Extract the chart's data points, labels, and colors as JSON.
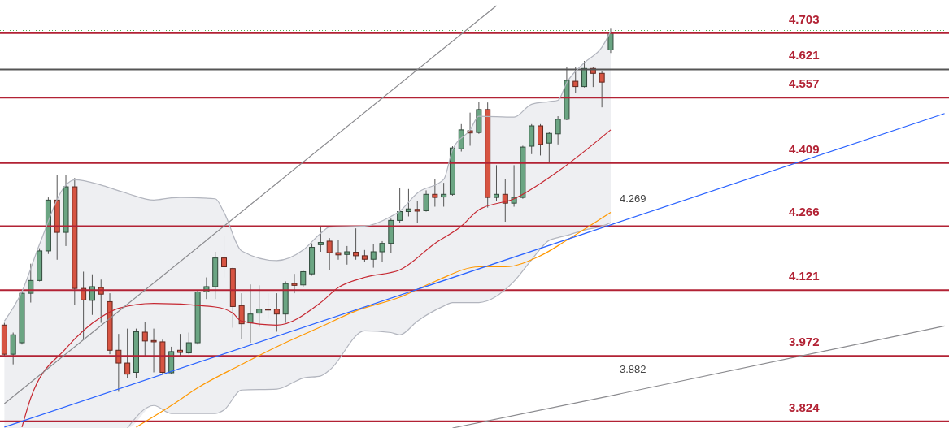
{
  "chart_data": {
    "type": "candlestick",
    "categories": [
      null,
      null,
      null,
      null,
      null,
      null,
      null,
      null,
      null,
      null,
      null,
      null,
      null,
      null,
      null,
      null,
      null,
      null,
      null,
      null,
      null,
      null,
      null,
      null,
      null,
      null,
      null,
      null,
      null,
      null,
      null,
      null,
      null,
      null,
      null,
      null,
      null,
      null,
      null,
      null,
      null,
      null,
      null,
      null,
      null,
      null,
      null,
      null,
      null,
      null,
      null,
      null,
      null,
      null,
      null,
      null,
      null,
      null,
      null,
      null,
      null,
      null,
      null,
      null,
      null,
      null,
      null,
      null,
      null,
      null,
      null,
      null,
      null,
      null,
      null,
      null,
      null,
      null,
      null,
      null,
      null,
      null,
      null,
      null,
      null,
      null,
      null,
      null,
      null,
      null,
      null,
      null,
      null,
      null,
      null,
      null,
      null,
      null,
      null,
      null,
      null,
      null,
      null,
      null,
      null,
      null,
      null,
      null
    ],
    "ohlc": [
      [
        4.042,
        4.047,
        3.971,
        3.976
      ],
      [
        3.976,
        4.025,
        3.953,
        4.02
      ],
      [
        4.002,
        4.118,
        3.998,
        4.114
      ],
      [
        4.114,
        4.181,
        4.093,
        4.143
      ],
      [
        4.143,
        4.216,
        4.141,
        4.21
      ],
      [
        4.21,
        4.331,
        4.203,
        4.325
      ],
      [
        4.325,
        4.381,
        4.19,
        4.252
      ],
      [
        4.252,
        4.381,
        4.221,
        4.355
      ],
      [
        4.355,
        4.375,
        4.087,
        4.125
      ],
      [
        4.125,
        4.163,
        4.011,
        4.099
      ],
      [
        4.098,
        4.157,
        4.065,
        4.129
      ],
      [
        4.127,
        4.145,
        4.047,
        4.112
      ],
      [
        4.095,
        4.114,
        3.976,
        3.985
      ],
      [
        3.985,
        4.022,
        3.891,
        3.956
      ],
      [
        3.956,
        4.034,
        3.922,
        3.931
      ],
      [
        3.935,
        4.034,
        3.922,
        4.027
      ],
      [
        4.026,
        4.049,
        3.971,
        4.006
      ],
      [
        4.007,
        4.034,
        3.935,
        4.004
      ],
      [
        4.004,
        4.009,
        3.931,
        3.935
      ],
      [
        3.934,
        3.993,
        3.931,
        3.982
      ],
      [
        3.985,
        4.022,
        3.971,
        3.98
      ],
      [
        3.979,
        4.025,
        3.976,
        4.002
      ],
      [
        4.002,
        4.12,
        3.998,
        4.117
      ],
      [
        4.117,
        4.15,
        4.101,
        4.129
      ],
      [
        4.129,
        4.208,
        4.101,
        4.194
      ],
      [
        4.194,
        4.245,
        4.15,
        4.174
      ],
      [
        4.17,
        4.172,
        4.036,
        4.084
      ],
      [
        4.086,
        4.114,
        4.011,
        4.045
      ],
      [
        4.047,
        4.134,
        4.002,
        4.067
      ],
      [
        4.069,
        4.132,
        4.038,
        4.078
      ],
      [
        4.078,
        4.114,
        4.056,
        4.076
      ],
      [
        4.078,
        4.114,
        4.027,
        4.067
      ],
      [
        4.067,
        4.141,
        4.047,
        4.136
      ],
      [
        4.136,
        4.158,
        4.114,
        4.132
      ],
      [
        4.133,
        4.165,
        4.129,
        4.163
      ],
      [
        4.158,
        4.227,
        4.154,
        4.218
      ],
      [
        4.224,
        4.266,
        4.208,
        4.229
      ],
      [
        4.232,
        4.239,
        4.166,
        4.206
      ],
      [
        4.206,
        4.234,
        4.19,
        4.201
      ],
      [
        4.202,
        4.221,
        4.179,
        4.208
      ],
      [
        4.207,
        4.261,
        4.19,
        4.199
      ],
      [
        4.199,
        4.212,
        4.185,
        4.191
      ],
      [
        4.191,
        4.225,
        4.172,
        4.208
      ],
      [
        4.208,
        4.232,
        4.185,
        4.227
      ],
      [
        4.227,
        4.283,
        4.205,
        4.279
      ],
      [
        4.279,
        4.352,
        4.274,
        4.299
      ],
      [
        4.299,
        4.35,
        4.288,
        4.305
      ],
      [
        4.304,
        4.323,
        4.274,
        4.3
      ],
      [
        4.301,
        4.347,
        4.299,
        4.338
      ],
      [
        4.338,
        4.372,
        4.31,
        4.331
      ],
      [
        4.332,
        4.364,
        4.31,
        4.338
      ],
      [
        4.338,
        4.447,
        4.335,
        4.443
      ],
      [
        4.441,
        4.497,
        4.435,
        4.484
      ],
      [
        4.482,
        4.523,
        4.448,
        4.477
      ],
      [
        4.478,
        4.548,
        4.475,
        4.53
      ],
      [
        4.53,
        4.546,
        4.308,
        4.331
      ],
      [
        4.331,
        4.404,
        4.323,
        4.338
      ],
      [
        4.338,
        4.372,
        4.276,
        4.318
      ],
      [
        4.318,
        4.404,
        4.31,
        4.331
      ],
      [
        4.331,
        4.448,
        4.328,
        4.445
      ],
      [
        4.447,
        4.497,
        4.429,
        4.493
      ],
      [
        4.493,
        4.497,
        4.426,
        4.451
      ],
      [
        4.454,
        4.48,
        4.411,
        4.476
      ],
      [
        4.475,
        4.515,
        4.451,
        4.508
      ],
      [
        4.508,
        4.627,
        4.506,
        4.596
      ],
      [
        4.594,
        4.627,
        4.567,
        4.582
      ],
      [
        4.582,
        4.64,
        4.58,
        4.623
      ],
      [
        4.623,
        4.627,
        4.581,
        4.612
      ],
      [
        4.612,
        4.618,
        4.535,
        4.592
      ],
      [
        4.665,
        4.713,
        4.658,
        4.705
      ],
      null,
      null,
      null,
      null,
      null,
      null,
      null,
      null,
      null,
      null,
      null,
      null,
      null,
      null,
      null,
      null,
      null,
      null,
      null,
      null,
      null,
      null,
      null,
      null,
      null,
      null,
      null,
      null,
      null,
      null,
      null,
      null,
      null,
      null,
      null,
      null,
      null,
      null
    ],
    "colors": [
      "#d75442",
      "#6ba583",
      "#6ba583",
      "#6ba583",
      "#6ba583",
      "#6ba583",
      "#d75442",
      "#6ba583",
      "#d75442",
      "#d75442",
      "#6ba583",
      "#d75442",
      "#d75442",
      "#d75442",
      "#d75442",
      "#6ba583",
      "#d75442",
      "#d75442",
      "#d75442",
      "#6ba583",
      "#d75442",
      "#6ba583",
      "#6ba583",
      "#6ba583",
      "#6ba583",
      "#d75442",
      "#d75442",
      "#d75442",
      "#6ba583",
      "#6ba583",
      "#d75442",
      "#d75442",
      "#6ba583",
      "#d75442",
      "#6ba583",
      "#6ba583",
      "#6ba583",
      "#d75442",
      "#d75442",
      "#6ba583",
      "#d75442",
      "#d75442",
      "#6ba583",
      "#6ba583",
      "#6ba583",
      "#6ba583",
      "#6ba583",
      "#d75442",
      "#6ba583",
      "#d75442",
      "#6ba583",
      "#6ba583",
      "#6ba583",
      "#d75442",
      "#6ba583",
      "#d75442",
      "#6ba583",
      "#d75442",
      "#6ba583",
      "#6ba583",
      "#6ba583",
      "#d75442",
      "#6ba583",
      "#6ba583",
      "#6ba583",
      "#d75442",
      "#6ba583",
      "#d75442",
      "#d75442",
      "#6ba583",
      null,
      null,
      null,
      null,
      null,
      null,
      null,
      null,
      null,
      null,
      null,
      null,
      null,
      null,
      null,
      null,
      null,
      null,
      null,
      null,
      null,
      null,
      null,
      null,
      null,
      null,
      null,
      null,
      null,
      null,
      null,
      null,
      null,
      null,
      null,
      null,
      null,
      null
    ],
    "series": [
      {
        "type": "line",
        "color": "#c62832",
        "values": [
          null,
          null,
          3.811,
          3.877,
          null,
          null,
          null,
          3.989,
          null,
          null,
          null,
          4.06,
          null,
          4.08,
          null,
          null,
          null,
          4.091,
          null,
          null,
          null,
          null,
          null,
          null,
          4.083,
          null,
          4.069,
          4.051,
          null,
          null,
          null,
          4.042,
          null,
          null,
          null,
          null,
          4.093,
          null,
          4.127,
          null,
          null,
          4.15,
          null,
          null,
          null,
          4.167,
          null,
          null,
          null,
          4.227,
          null,
          null,
          4.266,
          null,
          4.303,
          null,
          null,
          null,
          4.328,
          null,
          null,
          null,
          null,
          4.39,
          null,
          null,
          null,
          null,
          null,
          4.484,
          null,
          null,
          null,
          null,
          null,
          null,
          null,
          null,
          null,
          null,
          null,
          null,
          null,
          null,
          null,
          null,
          null,
          null,
          null,
          null,
          null,
          null,
          null,
          null,
          null,
          null,
          null,
          null,
          null,
          null,
          null,
          null,
          null,
          null,
          null,
          null,
          null,
          null
        ],
        "upper": [
          4.051,
          null,
          4.118,
          null,
          4.225,
          null,
          null,
          4.359,
          4.371,
          null,
          null,
          4.359,
          null,
          4.346,
          4.34,
          null,
          null,
          4.325,
          null,
          4.33,
          4.331,
          null,
          null,
          null,
          4.328,
          4.297,
          null,
          4.21,
          null,
          null,
          null,
          4.188,
          null,
          null,
          4.212,
          null,
          4.25,
          4.264,
          null,
          null,
          null,
          4.266,
          null,
          null,
          4.288,
          4.3,
          null,
          4.341,
          null,
          null,
          4.372,
          4.439,
          null,
          4.484,
          4.515,
          null,
          null,
          null,
          4.513,
          null,
          4.542,
          null,
          4.548,
          4.551,
          4.591,
          null,
          4.636,
          null,
          4.671,
          4.707,
          null,
          null,
          null,
          null,
          null,
          null,
          null,
          null,
          null,
          null,
          null,
          null,
          null,
          null,
          null,
          null,
          null,
          null,
          null,
          null,
          null,
          null,
          null,
          null,
          null,
          null,
          null,
          null,
          null,
          null,
          null,
          null,
          null,
          null,
          null,
          null,
          null,
          null
        ],
        "lower": [
          3.809,
          null,
          3.809,
          null,
          3.809,
          null,
          null,
          3.809,
          3.809,
          null,
          null,
          3.809,
          null,
          3.809,
          3.809,
          null,
          null,
          3.86,
          null,
          3.842,
          3.842,
          null,
          null,
          null,
          3.842,
          3.85,
          null,
          3.895,
          null,
          null,
          null,
          3.897,
          null,
          null,
          3.922,
          null,
          3.927,
          3.94,
          null,
          null,
          null,
          4.029,
          null,
          null,
          4.025,
          4.02,
          null,
          4.051,
          null,
          null,
          4.085,
          4.093,
          null,
          4.093,
          4.093,
          null,
          null,
          null,
          4.141,
          null,
          4.19,
          null,
          4.234,
          4.24,
          4.245,
          null,
          4.257,
          null,
          4.266,
          4.274,
          null,
          null,
          null,
          null,
          null,
          null,
          null,
          null,
          null,
          null,
          null,
          null,
          null,
          null,
          null,
          null,
          null,
          null,
          null,
          null,
          null,
          null,
          null,
          null,
          null,
          null,
          null,
          null,
          null,
          null,
          null,
          null,
          null,
          null,
          null,
          null,
          null,
          null
        ]
      },
      {
        "type": "line",
        "color": "#b2b5be",
        "values": [
          4.051,
          null,
          4.118,
          null,
          4.225,
          null,
          null,
          4.359,
          4.371,
          null,
          null,
          4.359,
          null,
          4.346,
          4.34,
          null,
          null,
          4.325,
          null,
          4.33,
          4.331,
          null,
          null,
          null,
          4.328,
          4.297,
          null,
          4.21,
          null,
          null,
          null,
          4.188,
          null,
          null,
          4.212,
          null,
          4.25,
          4.264,
          null,
          null,
          null,
          4.266,
          null,
          null,
          4.288,
          4.3,
          null,
          4.341,
          null,
          null,
          4.372,
          4.439,
          null,
          4.484,
          4.515,
          null,
          null,
          null,
          4.513,
          null,
          4.542,
          null,
          4.548,
          4.551,
          4.591,
          null,
          4.636,
          null,
          4.671,
          4.707,
          null,
          null,
          null,
          null,
          null,
          null,
          null,
          null,
          null,
          null,
          null,
          null,
          null,
          null,
          null,
          null,
          null,
          null,
          null,
          null,
          null,
          null,
          null,
          null,
          null,
          null,
          null,
          null,
          null,
          null,
          null,
          null,
          null,
          null,
          null,
          null,
          null,
          null
        ]
      },
      {
        "type": "line",
        "color": "#b2b5be",
        "values": [
          null,
          null,
          null,
          null,
          null,
          null,
          null,
          null,
          null,
          null,
          null,
          null,
          null,
          null,
          3.809,
          null,
          null,
          3.86,
          null,
          3.842,
          3.842,
          null,
          null,
          null,
          3.842,
          3.85,
          null,
          3.895,
          null,
          null,
          null,
          3.897,
          null,
          null,
          3.922,
          null,
          3.927,
          3.94,
          null,
          null,
          null,
          4.029,
          null,
          null,
          4.025,
          4.02,
          null,
          4.051,
          null,
          null,
          4.085,
          4.093,
          null,
          4.093,
          4.093,
          null,
          null,
          null,
          4.141,
          null,
          4.19,
          null,
          4.234,
          4.24,
          4.245,
          null,
          4.257,
          null,
          4.266,
          4.274,
          null,
          null,
          null,
          null,
          null,
          null,
          null,
          null,
          null,
          null,
          null,
          null,
          null,
          null,
          null,
          null,
          null,
          null,
          null,
          null,
          null,
          null,
          null,
          null,
          null,
          null,
          null,
          null,
          null,
          null,
          null,
          null,
          null,
          null,
          null,
          null,
          null,
          null
        ]
      },
      {
        "type": "line",
        "color": "#ff9800",
        "values": [
          null,
          null,
          null,
          null,
          null,
          null,
          null,
          null,
          null,
          null,
          null,
          null,
          null,
          null,
          null,
          3.811,
          null,
          null,
          null,
          3.86,
          null,
          null,
          3.9,
          null,
          null,
          null,
          null,
          3.953,
          null,
          null,
          null,
          3.993,
          null,
          null,
          null,
          null,
          4.038,
          null,
          null,
          null,
          4.074,
          null,
          null,
          null,
          null,
          4.105,
          null,
          null,
          null,
          4.141,
          null,
          null,
          null,
          null,
          4.174,
          null,
          null,
          4.174,
          null,
          null,
          null,
          4.199,
          null,
          null,
          4.234,
          null,
          null,
          null,
          null,
          4.297,
          null,
          null,
          null,
          null,
          null,
          null,
          null,
          null,
          null,
          null,
          null,
          null,
          null,
          null,
          null,
          null,
          null,
          null,
          null,
          null,
          null,
          null,
          null,
          null,
          null,
          null,
          null,
          null,
          null,
          null,
          null,
          null,
          null,
          null,
          null,
          null,
          null,
          null
        ]
      },
      {
        "type": "line",
        "color": "#2962ff",
        "values": [
          3.811,
          null,
          null,
          null,
          null,
          null,
          null,
          null,
          null,
          null,
          null,
          null,
          null,
          null,
          null,
          null,
          null,
          null,
          null,
          null,
          null,
          null,
          null,
          null,
          null,
          null,
          null,
          null,
          null,
          null,
          null,
          null,
          null,
          null,
          null,
          null,
          null,
          null,
          null,
          null,
          null,
          null,
          null,
          null,
          null,
          null,
          null,
          null,
          null,
          null,
          null,
          null,
          null,
          null,
          null,
          null,
          null,
          null,
          null,
          null,
          null,
          null,
          null,
          null,
          null,
          null,
          null,
          null,
          null,
          4.269,
          null,
          null,
          null,
          null,
          null,
          null,
          null,
          null,
          null,
          null,
          null,
          null,
          null,
          null,
          null,
          null,
          null,
          null,
          null,
          null,
          null,
          null,
          null,
          null,
          null,
          null,
          null,
          null,
          null,
          null,
          null,
          null,
          null,
          null,
          null,
          null,
          null,
          4.521
        ]
      },
      {
        "type": "line",
        "color": "#8a8a8e",
        "values": [
          3.864,
          null,
          null,
          null,
          null,
          null,
          null,
          null,
          null,
          null,
          null,
          null,
          null,
          null,
          null,
          null,
          null,
          null,
          null,
          null,
          null,
          null,
          null,
          null,
          null,
          null,
          null,
          null,
          null,
          null,
          null,
          null,
          null,
          null,
          null,
          null,
          null,
          null,
          null,
          null,
          null,
          null,
          null,
          null,
          null,
          null,
          null,
          null,
          null,
          null,
          null,
          null,
          null,
          null,
          null,
          null,
          4.765,
          null,
          null,
          null,
          null,
          null,
          null,
          null,
          null,
          null,
          null,
          null,
          null,
          null,
          null,
          null,
          null,
          null,
          null,
          null,
          null,
          null,
          null,
          null,
          null,
          null,
          null,
          null,
          null,
          null,
          null,
          null,
          null,
          null,
          null,
          null,
          null,
          null,
          null,
          null,
          null,
          null,
          null,
          null,
          null,
          null,
          null,
          null,
          null,
          null,
          null,
          null
        ]
      },
      {
        "type": "line",
        "color": "#8a8a8e",
        "values": [
          null,
          null,
          null,
          null,
          null,
          null,
          null,
          null,
          null,
          null,
          null,
          null,
          null,
          null,
          null,
          null,
          null,
          null,
          null,
          null,
          null,
          null,
          null,
          null,
          null,
          null,
          null,
          null,
          null,
          null,
          null,
          null,
          null,
          null,
          null,
          null,
          null,
          null,
          null,
          null,
          null,
          null,
          null,
          null,
          null,
          null,
          null,
          null,
          null,
          null,
          null,
          3.809,
          null,
          null,
          null,
          null,
          null,
          null,
          null,
          null,
          null,
          null,
          null,
          null,
          null,
          null,
          null,
          null,
          null,
          3.882,
          null,
          null,
          null,
          null,
          null,
          null,
          null,
          null,
          null,
          null,
          null,
          null,
          null,
          null,
          null,
          null,
          null,
          null,
          null,
          null,
          null,
          null,
          null,
          null,
          null,
          null,
          null,
          null,
          null,
          null,
          null,
          null,
          null,
          null,
          null,
          null,
          null,
          4.04
        ]
      }
    ],
    "ylim": [
      3.809,
      4.778
    ],
    "tick_labels": false,
    "ref_lines": [
      {
        "axis": "y",
        "value": 4.709,
        "color": "#4caf50",
        "line_style": "dotted"
      },
      {
        "axis": "y",
        "value": 4.703,
        "label": "4.703",
        "color": "#b22234"
      },
      {
        "axis": "y",
        "value": 4.621,
        "label": "4.621",
        "color": "#555555"
      },
      {
        "axis": "y",
        "value": 4.557,
        "label": "4.557",
        "color": "#b22234"
      },
      {
        "axis": "y",
        "value": 4.409,
        "label": "4.409",
        "color": "#b22234"
      },
      {
        "axis": "y",
        "value": 4.266,
        "label": "4.266",
        "color": "#b22234"
      },
      {
        "axis": "y",
        "value": 4.121,
        "label": "4.121",
        "color": "#b22234"
      },
      {
        "axis": "y",
        "value": 3.972,
        "label": "3.972",
        "color": "#b22234"
      },
      {
        "axis": "y",
        "value": 3.824,
        "label": "3.824",
        "color": "#b22234"
      }
    ],
    "annotations": [
      {
        "text": "4.269",
        "y": 4.269
      },
      {
        "text": "3.882",
        "y": 3.882
      }
    ]
  }
}
